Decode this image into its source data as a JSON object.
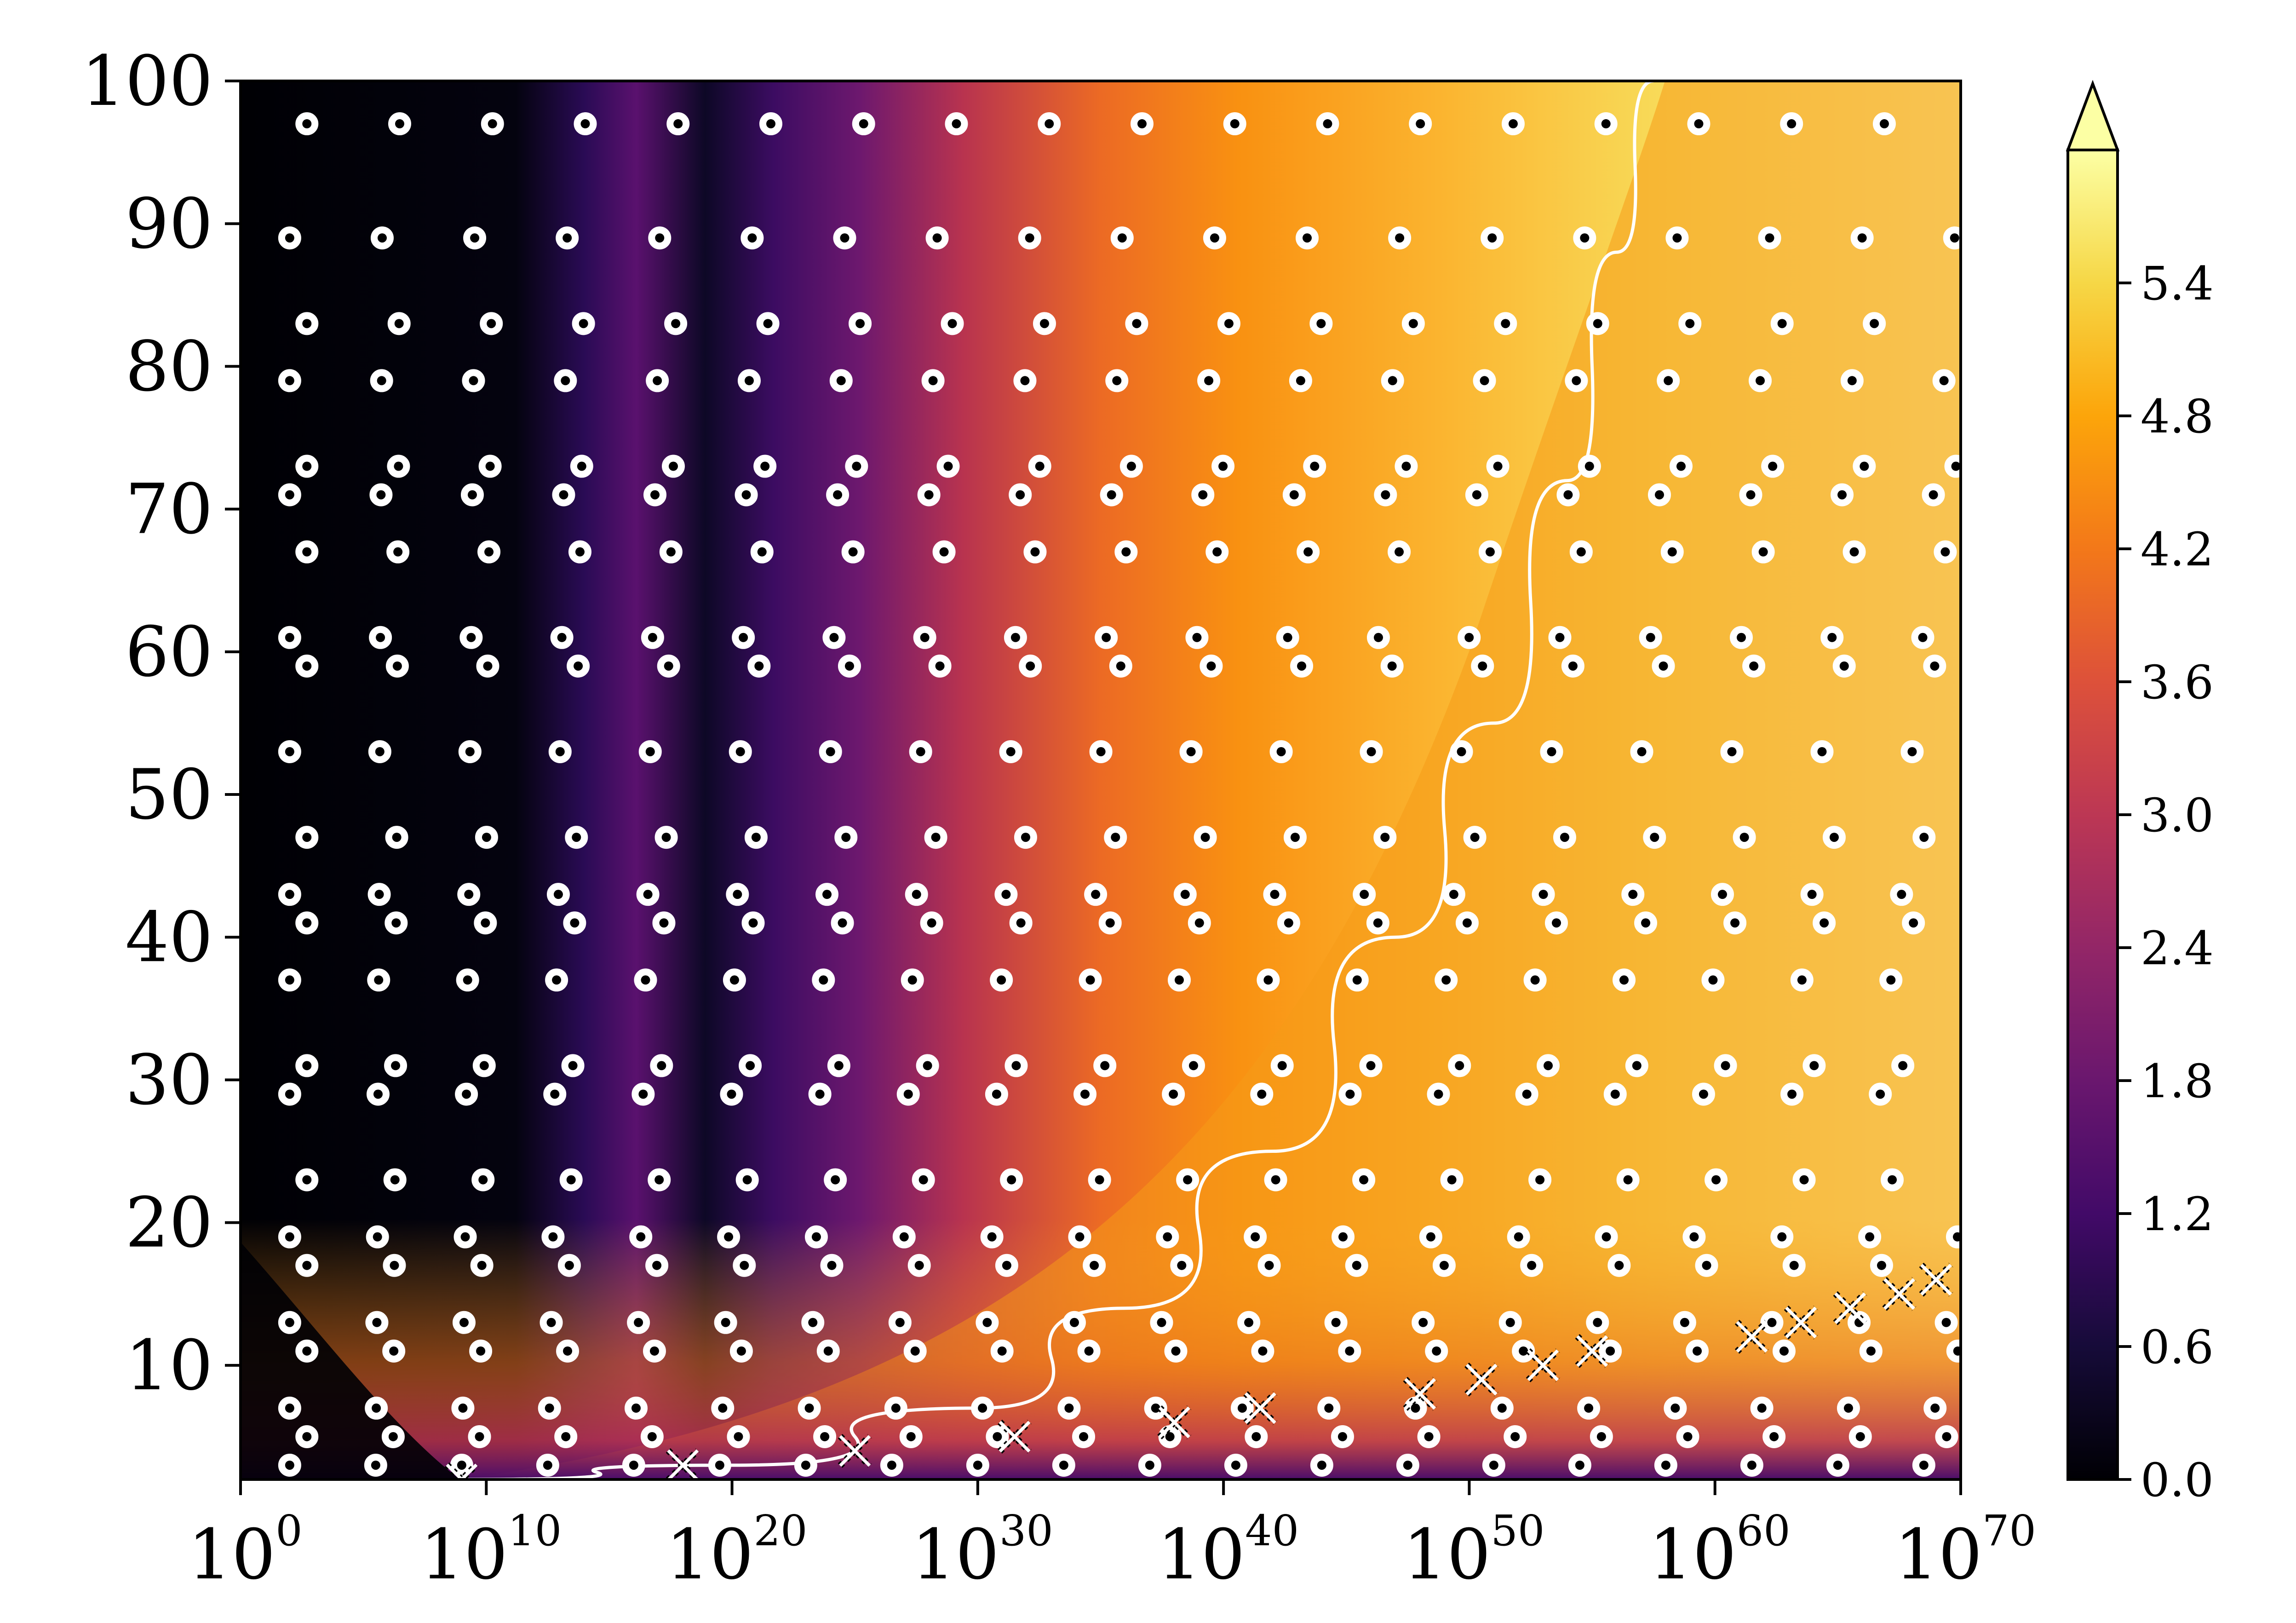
{
  "chart_data": {
    "type": "heatmap",
    "title": "",
    "xlabel": "",
    "ylabel": "",
    "x_scale": "log10",
    "xlim_exponent": [
      0,
      70
    ],
    "ylim": [
      2,
      100
    ],
    "x_tick_base": "10",
    "x_tick_exponents": [
      "0",
      "10",
      "20",
      "30",
      "40",
      "50",
      "60",
      "70"
    ],
    "y_ticks": [
      "10",
      "20",
      "30",
      "40",
      "50",
      "60",
      "70",
      "80",
      "90",
      "100"
    ],
    "colorbar": {
      "colormap": "inferno",
      "range": [
        0.0,
        6.0
      ],
      "extend": "max",
      "ticks": [
        "0.0",
        "0.6",
        "1.2",
        "1.8",
        "2.4",
        "3.0",
        "3.6",
        "4.2",
        "4.8",
        "5.4"
      ]
    },
    "markers_open_circle_y": [
      3,
      5,
      7,
      11,
      13,
      17,
      19,
      23,
      29,
      31,
      37,
      41,
      43,
      47,
      53,
      59,
      61,
      67,
      71,
      73,
      79,
      83,
      89,
      97
    ],
    "markers_cross": [
      {
        "x_exp": 9,
        "y": 2
      },
      {
        "x_exp": 18,
        "y": 3
      },
      {
        "x_exp": 25,
        "y": 4
      },
      {
        "x_exp": 31.5,
        "y": 5
      },
      {
        "x_exp": 38,
        "y": 6
      },
      {
        "x_exp": 41.5,
        "y": 7
      },
      {
        "x_exp": 48,
        "y": 8
      },
      {
        "x_exp": 50.5,
        "y": 9
      },
      {
        "x_exp": 53,
        "y": 10
      },
      {
        "x_exp": 55,
        "y": 11
      },
      {
        "x_exp": 61.5,
        "y": 12
      },
      {
        "x_exp": 63.5,
        "y": 13
      },
      {
        "x_exp": 65.5,
        "y": 14
      },
      {
        "x_exp": 67.5,
        "y": 15
      },
      {
        "x_exp": 69,
        "y": 16
      }
    ],
    "boundary_curve": [
      {
        "x_exp": 9,
        "y": 2
      },
      {
        "x_exp": 20,
        "y": 3
      },
      {
        "x_exp": 30,
        "y": 7
      },
      {
        "x_exp": 36,
        "y": 14
      },
      {
        "x_exp": 42,
        "y": 25
      },
      {
        "x_exp": 47,
        "y": 40
      },
      {
        "x_exp": 51,
        "y": 55
      },
      {
        "x_exp": 54,
        "y": 72
      },
      {
        "x_exp": 56,
        "y": 88
      },
      {
        "x_exp": 57.5,
        "y": 100
      }
    ],
    "colors": {
      "frame": "#000000",
      "marker_face": "#ffffff",
      "marker_edge": "#000000",
      "curve": "#ffffff",
      "cross": "#ffffff"
    }
  }
}
